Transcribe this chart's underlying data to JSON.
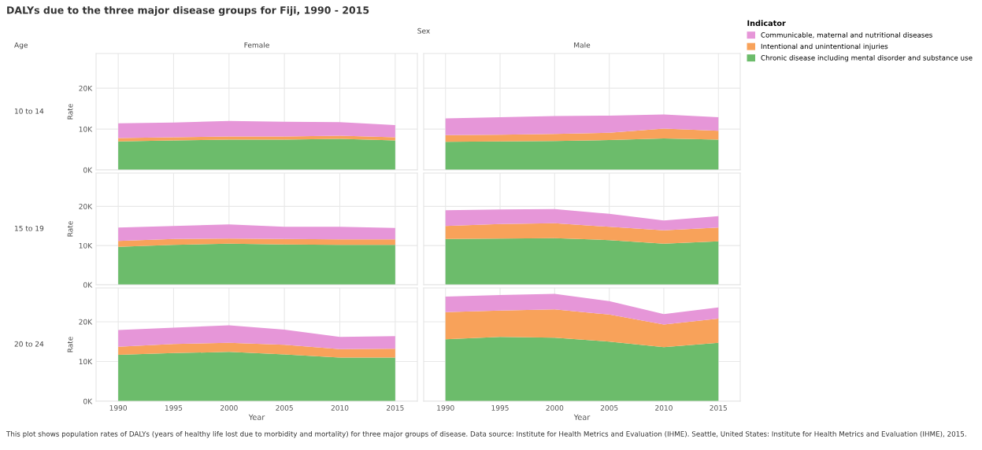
{
  "chart_data": [
    {
      "type": "area",
      "stacked": true,
      "title": "DALYs due to the three major disease groups for Fiji, 1990 - 2015",
      "subtitle": "Female",
      "ylabel": "Rate",
      "annotations": [
        "10 to 14",
        "Age"
      ],
      "x": [
        1990,
        1995,
        2000,
        2005,
        2010,
        2015
      ],
      "xlim": [
        1988,
        2017
      ],
      "xticks": [
        {
          "value": 1990,
          "label": null
        },
        {
          "value": 1995,
          "label": null
        },
        {
          "value": 2000,
          "label": null
        },
        {
          "value": 2005,
          "label": null
        },
        {
          "value": 2010,
          "label": null
        },
        {
          "value": 2015,
          "label": null
        }
      ],
      "ylim": [
        0,
        28500
      ],
      "yticks": [
        {
          "value": 0,
          "label": "0K"
        },
        {
          "value": 10000,
          "label": "10K"
        },
        {
          "value": 20000,
          "label": "20K"
        }
      ],
      "tick_labels": "y",
      "grid": true,
      "series": [
        {
          "color": "#6cbc6b",
          "values": [
            7000,
            7200,
            7400,
            7400,
            7600,
            7200
          ]
        },
        {
          "color": "#f8a25a",
          "values": [
            800,
            800,
            800,
            800,
            800,
            800
          ]
        },
        {
          "color": "#e696d8",
          "values": [
            3600,
            3600,
            3800,
            3600,
            3300,
            3000
          ]
        }
      ]
    },
    {
      "type": "area",
      "stacked": true,
      "subtitle": "Male",
      "annotations": [
        "Sex"
      ],
      "legend": "right",
      "legend_title": "Indicator",
      "x": [
        1990,
        1995,
        2000,
        2005,
        2010,
        2015
      ],
      "xlim": [
        1988,
        2017
      ],
      "xticks": [
        {
          "value": 1990,
          "label": null
        },
        {
          "value": 1995,
          "label": null
        },
        {
          "value": 2000,
          "label": null
        },
        {
          "value": 2005,
          "label": null
        },
        {
          "value": 2010,
          "label": null
        },
        {
          "value": 2015,
          "label": null
        }
      ],
      "ylim": [
        0,
        28500
      ],
      "yticks": [
        {
          "value": 0,
          "label": null
        },
        {
          "value": 10000,
          "label": null
        },
        {
          "value": 20000,
          "label": null
        }
      ],
      "tick_labels": false,
      "grid": true,
      "series": [
        {
          "name": "Chronic disease including mental disorder and substance use",
          "color": "#6cbc6b",
          "values": [
            6900,
            7000,
            7100,
            7300,
            7700,
            7400
          ]
        },
        {
          "name": "Intentional and unintentional injuries",
          "color": "#f8a25a",
          "values": [
            1600,
            1600,
            1700,
            1800,
            2400,
            2200
          ]
        },
        {
          "name": "Communicable, maternal and nutritional diseases",
          "color": "#e696d8",
          "values": [
            4100,
            4300,
            4400,
            4200,
            3500,
            3300
          ]
        }
      ]
    },
    {
      "type": "area",
      "stacked": true,
      "ylabel": "Rate",
      "annotations": [
        "15 to 19"
      ],
      "x": [
        1990,
        1995,
        2000,
        2005,
        2010,
        2015
      ],
      "xlim": [
        1988,
        2017
      ],
      "xticks": [
        {
          "value": 1990,
          "label": null
        },
        {
          "value": 1995,
          "label": null
        },
        {
          "value": 2000,
          "label": null
        },
        {
          "value": 2005,
          "label": null
        },
        {
          "value": 2010,
          "label": null
        },
        {
          "value": 2015,
          "label": null
        }
      ],
      "ylim": [
        0,
        28500
      ],
      "yticks": [
        {
          "value": 0,
          "label": "0K"
        },
        {
          "value": 10000,
          "label": "10K"
        },
        {
          "value": 20000,
          "label": "20K"
        }
      ],
      "tick_labels": "y",
      "grid": true,
      "series": [
        {
          "color": "#6cbc6b",
          "values": [
            9700,
            10200,
            10500,
            10300,
            10200,
            10200
          ]
        },
        {
          "color": "#f8a25a",
          "values": [
            1500,
            1500,
            1300,
            1400,
            1400,
            1400
          ]
        },
        {
          "color": "#e696d8",
          "values": [
            3400,
            3300,
            3600,
            3100,
            3200,
            2900
          ]
        }
      ]
    },
    {
      "type": "area",
      "stacked": true,
      "x": [
        1990,
        1995,
        2000,
        2005,
        2010,
        2015
      ],
      "xlim": [
        1988,
        2017
      ],
      "xticks": [
        {
          "value": 1990,
          "label": null
        },
        {
          "value": 1995,
          "label": null
        },
        {
          "value": 2000,
          "label": null
        },
        {
          "value": 2005,
          "label": null
        },
        {
          "value": 2010,
          "label": null
        },
        {
          "value": 2015,
          "label": null
        }
      ],
      "ylim": [
        0,
        28500
      ],
      "yticks": [
        {
          "value": 0,
          "label": null
        },
        {
          "value": 10000,
          "label": null
        },
        {
          "value": 20000,
          "label": null
        }
      ],
      "tick_labels": false,
      "grid": true,
      "series": [
        {
          "color": "#6cbc6b",
          "values": [
            11700,
            11800,
            11900,
            11400,
            10500,
            11100
          ]
        },
        {
          "color": "#f8a25a",
          "values": [
            3300,
            3700,
            3800,
            3400,
            3400,
            3500
          ]
        },
        {
          "color": "#e696d8",
          "values": [
            4000,
            3700,
            3600,
            3300,
            2500,
            2900
          ]
        }
      ]
    },
    {
      "type": "area",
      "stacked": true,
      "ylabel": "Rate",
      "xlabel": "Year",
      "annotations": [
        "20 to 24",
        "This plot shows population rates of DALYs (years of healthy life lost due to morbidity and mortality) for three major groups of disease. Data source: Institute for Health Metrics and Evaluation (IHME). Seattle, United States: Institute for Health Metrics and Evaluation (IHME), 2015."
      ],
      "x": [
        1990,
        1995,
        2000,
        2005,
        2010,
        2015
      ],
      "xlim": [
        1988,
        2017
      ],
      "xticks": [
        1990,
        1995,
        2000,
        2005,
        2010,
        2015
      ],
      "ylim": [
        0,
        28500
      ],
      "yticks": [
        {
          "value": 0,
          "label": "0K"
        },
        {
          "value": 10000,
          "label": "10K"
        },
        {
          "value": 20000,
          "label": "20K"
        }
      ],
      "grid": true,
      "series": [
        {
          "color": "#6cbc6b",
          "values": [
            11700,
            12100,
            12400,
            11800,
            11000,
            11000
          ]
        },
        {
          "color": "#f8a25a",
          "values": [
            2000,
            2300,
            2300,
            2400,
            2100,
            2200
          ]
        },
        {
          "color": "#e696d8",
          "values": [
            4200,
            4100,
            4400,
            3800,
            3100,
            3200
          ]
        }
      ]
    },
    {
      "type": "area",
      "stacked": true,
      "xlabel": "Year",
      "x": [
        1990,
        1995,
        2000,
        2005,
        2010,
        2015
      ],
      "xlim": [
        1988,
        2017
      ],
      "xticks": [
        1990,
        1995,
        2000,
        2005,
        2010,
        2015
      ],
      "ylim": [
        0,
        28500
      ],
      "yticks": [
        {
          "value": 0,
          "label": null
        },
        {
          "value": 10000,
          "label": null
        },
        {
          "value": 20000,
          "label": null
        }
      ],
      "tick_labels": "x",
      "grid": true,
      "series": [
        {
          "color": "#6cbc6b",
          "values": [
            15600,
            16200,
            16000,
            15000,
            13600,
            14700
          ]
        },
        {
          "color": "#f8a25a",
          "values": [
            6800,
            6600,
            7100,
            6800,
            5700,
            6100
          ]
        },
        {
          "color": "#e696d8",
          "values": [
            3900,
            3900,
            3900,
            3400,
            2600,
            2800
          ]
        }
      ]
    }
  ]
}
